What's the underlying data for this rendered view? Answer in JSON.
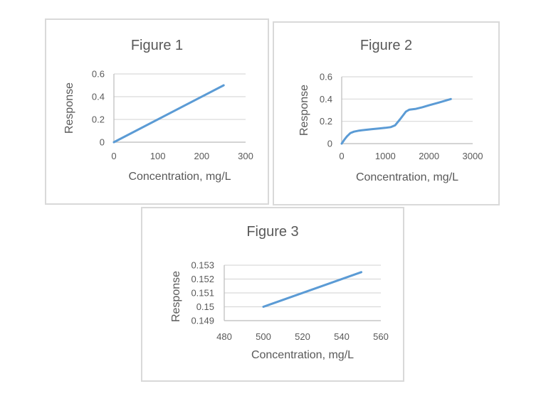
{
  "colors": {
    "line": "#5B9BD5",
    "gridline": "#D9D9D9",
    "axis": "#BFBFBF",
    "text": "#595959",
    "box_border": "#D9D9D9",
    "background": "#FFFFFF"
  },
  "chart_data": [
    {
      "type": "line",
      "title": "Figure 1",
      "xlabel": "Concentration, mg/L",
      "ylabel": "Response",
      "xlim": [
        0,
        300
      ],
      "ylim": [
        0,
        0.6
      ],
      "x_tick_values": [
        0,
        100,
        200,
        300
      ],
      "x_tick_labels": [
        "0",
        "100",
        "200",
        "300"
      ],
      "y_tick_values": [
        0,
        0.2,
        0.4,
        0.6
      ],
      "y_tick_labels": [
        "0",
        "0.2",
        "0.4",
        "0.6"
      ],
      "grid": "horizontal-major",
      "legend": "none",
      "series": [
        {
          "name": "Response",
          "points": [
            [
              0,
              0
            ],
            [
              250,
              0.5
            ]
          ]
        }
      ]
    },
    {
      "type": "line",
      "title": "Figure 2",
      "xlabel": "Concentration, mg/L",
      "ylabel": "Response",
      "xlim": [
        0,
        3000
      ],
      "ylim": [
        0,
        0.6
      ],
      "x_tick_values": [
        0,
        1000,
        2000,
        3000
      ],
      "x_tick_labels": [
        "0",
        "1000",
        "2000",
        "3000"
      ],
      "y_tick_values": [
        0,
        0.2,
        0.4,
        0.6
      ],
      "y_tick_labels": [
        "0",
        "0.2",
        "0.4",
        "0.6"
      ],
      "grid": "horizontal-major",
      "legend": "none",
      "series": [
        {
          "name": "Response",
          "points": [
            [
              0,
              0
            ],
            [
              60,
              0.035
            ],
            [
              120,
              0.065
            ],
            [
              200,
              0.095
            ],
            [
              280,
              0.107
            ],
            [
              400,
              0.117
            ],
            [
              550,
              0.124
            ],
            [
              700,
              0.13
            ],
            [
              850,
              0.136
            ],
            [
              1000,
              0.142
            ],
            [
              1125,
              0.148
            ],
            [
              1225,
              0.165
            ],
            [
              1340,
              0.22
            ],
            [
              1470,
              0.287
            ],
            [
              1550,
              0.305
            ],
            [
              1700,
              0.312
            ],
            [
              1850,
              0.327
            ],
            [
              2000,
              0.344
            ],
            [
              2230,
              0.369
            ],
            [
              2500,
              0.4
            ]
          ]
        }
      ]
    },
    {
      "type": "line",
      "title": "Figure 3",
      "xlabel": "Concentration, mg/L",
      "ylabel": "Response",
      "xlim": [
        480,
        560
      ],
      "ylim": [
        0.149,
        0.153
      ],
      "x_tick_values": [
        480,
        500,
        520,
        540,
        560
      ],
      "x_tick_labels": [
        "480",
        "500",
        "520",
        "540",
        "560"
      ],
      "y_tick_values": [
        0.149,
        0.15,
        0.151,
        0.152,
        0.153
      ],
      "y_tick_labels": [
        "0.149",
        "0.15",
        "0.151",
        "0.152",
        "0.153"
      ],
      "grid": "horizontal-major",
      "legend": "none",
      "series": [
        {
          "name": "Response",
          "points": [
            [
              500,
              0.15
            ],
            [
              550,
              0.1525
            ]
          ]
        }
      ]
    }
  ]
}
